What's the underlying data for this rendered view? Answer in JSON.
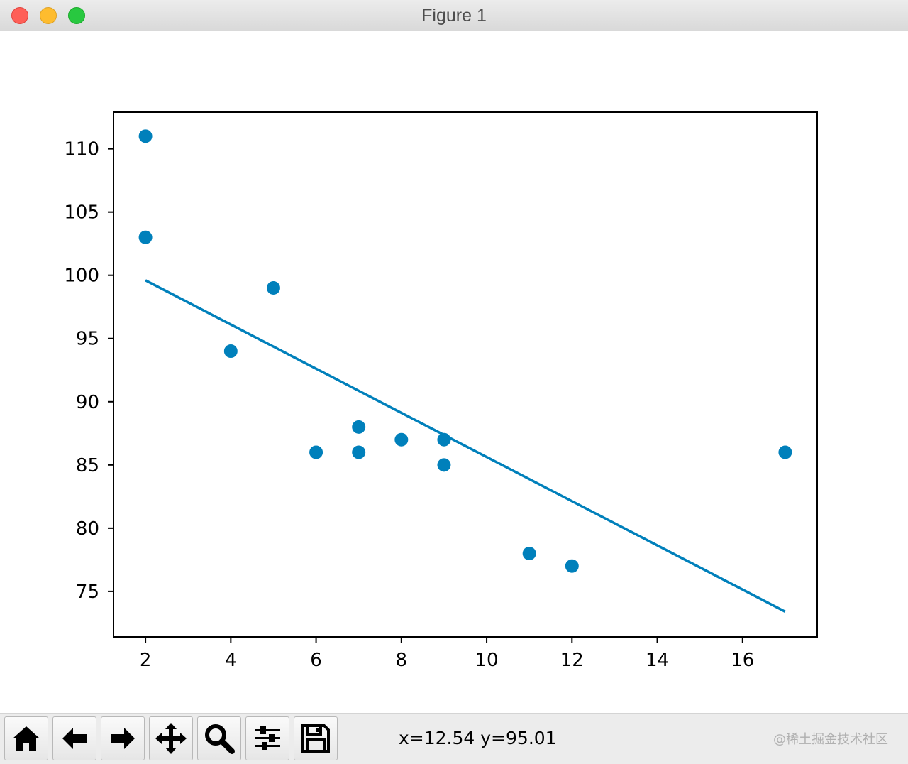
{
  "window": {
    "title": "Figure 1"
  },
  "toolbar": {
    "buttons": [
      {
        "name": "home-button",
        "icon": "home-icon"
      },
      {
        "name": "back-button",
        "icon": "arrow-left-icon"
      },
      {
        "name": "forward-button",
        "icon": "arrow-right-icon"
      },
      {
        "name": "pan-button",
        "icon": "move-icon"
      },
      {
        "name": "zoom-button",
        "icon": "magnifier-icon"
      },
      {
        "name": "configure-subplots-button",
        "icon": "sliders-icon"
      },
      {
        "name": "save-button",
        "icon": "floppy-disk-icon"
      }
    ],
    "coords": "x=12.54 y=95.01",
    "watermark": "@稀土掘金技术社区"
  },
  "chart_data": {
    "type": "scatter",
    "title": "",
    "xlabel": "",
    "ylabel": "",
    "xlim": [
      1.25,
      17.75
    ],
    "ylim": [
      71.4,
      112.9
    ],
    "xticks": [
      2,
      4,
      6,
      8,
      10,
      12,
      14,
      16
    ],
    "yticks": [
      75,
      80,
      85,
      90,
      95,
      100,
      105,
      110
    ],
    "grid": false,
    "color": "#0080bb",
    "series": [
      {
        "type": "scatter",
        "x": [
          5,
          7,
          8,
          7,
          2,
          17,
          2,
          9,
          4,
          11,
          12,
          9,
          6
        ],
        "y": [
          99,
          86,
          87,
          88,
          111,
          86,
          103,
          87,
          94,
          78,
          77,
          85,
          86
        ]
      },
      {
        "type": "line",
        "x": [
          2,
          17
        ],
        "y": [
          99.6,
          73.4
        ]
      }
    ]
  }
}
